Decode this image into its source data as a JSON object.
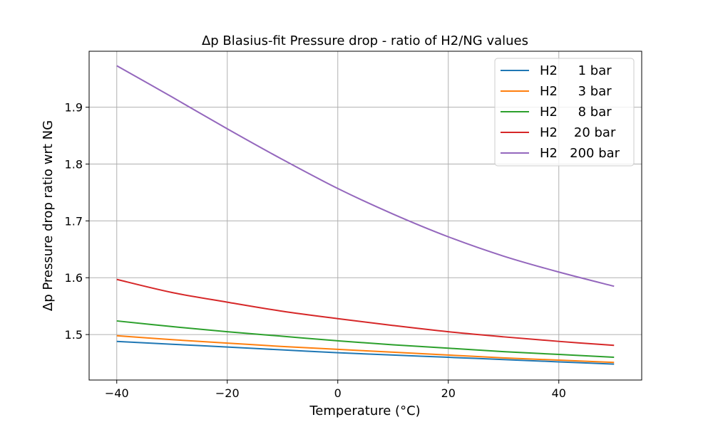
{
  "chart_data": {
    "type": "line",
    "title": "Δp Blasius-fit Pressure drop - ratio of H2/NG values",
    "xlabel": "Temperature (°C)",
    "ylabel": "Δp Pressure drop  ratio wrt NG",
    "xlim": [
      -45,
      55
    ],
    "ylim": [
      1.42,
      1.9985
    ],
    "xticks": [
      -40,
      -20,
      0,
      20,
      40
    ],
    "xtick_labels": [
      "−40",
      "−20",
      "0",
      "20",
      "40"
    ],
    "yticks": [
      1.5,
      1.6,
      1.7,
      1.8,
      1.9
    ],
    "ytick_labels": [
      "1.5",
      "1.6",
      "1.7",
      "1.8",
      "1.9"
    ],
    "grid": true,
    "legend_position": "top-right",
    "x": [
      -40,
      -30,
      -20,
      -10,
      0,
      10,
      20,
      30,
      40,
      50
    ],
    "series": [
      {
        "name": "H2     1 bar",
        "color": "#1f77b4",
        "values": [
          1.488,
          1.483,
          1.478,
          1.473,
          1.468,
          1.464,
          1.46,
          1.456,
          1.452,
          1.448
        ]
      },
      {
        "name": "H2     3 bar",
        "color": "#ff7f0e",
        "values": [
          1.498,
          1.491,
          1.485,
          1.479,
          1.474,
          1.469,
          1.464,
          1.459,
          1.455,
          1.451
        ]
      },
      {
        "name": "H2     8 bar",
        "color": "#2ca02c",
        "values": [
          1.524,
          1.514,
          1.505,
          1.497,
          1.489,
          1.482,
          1.476,
          1.47,
          1.465,
          1.46
        ]
      },
      {
        "name": "H2    20 bar",
        "color": "#d62728",
        "values": [
          1.597,
          1.574,
          1.557,
          1.541,
          1.528,
          1.516,
          1.505,
          1.496,
          1.488,
          1.481
        ]
      },
      {
        "name": "H2   200 bar",
        "color": "#9467bd",
        "values": [
          1.973,
          1.918,
          1.862,
          1.808,
          1.757,
          1.712,
          1.672,
          1.638,
          1.61,
          1.585
        ]
      }
    ]
  }
}
